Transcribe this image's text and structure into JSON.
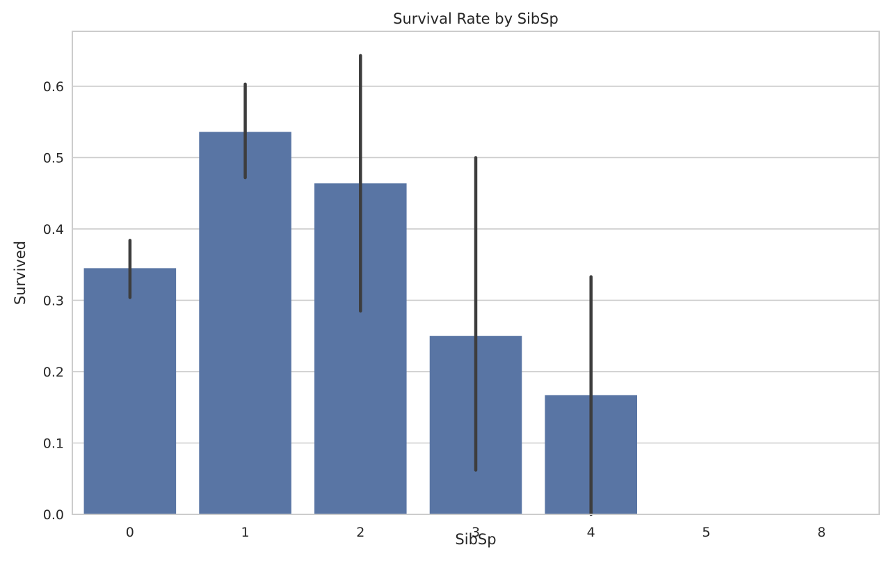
{
  "chart_data": {
    "type": "bar",
    "title": "Survival Rate by SibSp",
    "xlabel": "SibSp",
    "ylabel": "Survived",
    "categories": [
      "0",
      "1",
      "2",
      "3",
      "4",
      "5",
      "8"
    ],
    "values": [
      0.345,
      0.536,
      0.464,
      0.25,
      0.167,
      0.0,
      0.0
    ],
    "error_bars": [
      [
        0.304,
        0.384
      ],
      [
        0.472,
        0.603
      ],
      [
        0.285,
        0.643
      ],
      [
        0.062,
        0.5
      ],
      [
        0.0,
        0.333
      ],
      [
        0.0,
        0.0
      ],
      [
        0.0,
        0.0
      ]
    ],
    "ylim": [
      0,
      0.677
    ],
    "yticks": [
      "0.0",
      "0.1",
      "0.2",
      "0.3",
      "0.4",
      "0.5",
      "0.6"
    ],
    "grid": true,
    "colors": {
      "bar": "#5975a4",
      "error_bar": "#3d3d3d",
      "grid": "#cccccc",
      "frame": "#cccccc",
      "text": "#262626"
    }
  }
}
